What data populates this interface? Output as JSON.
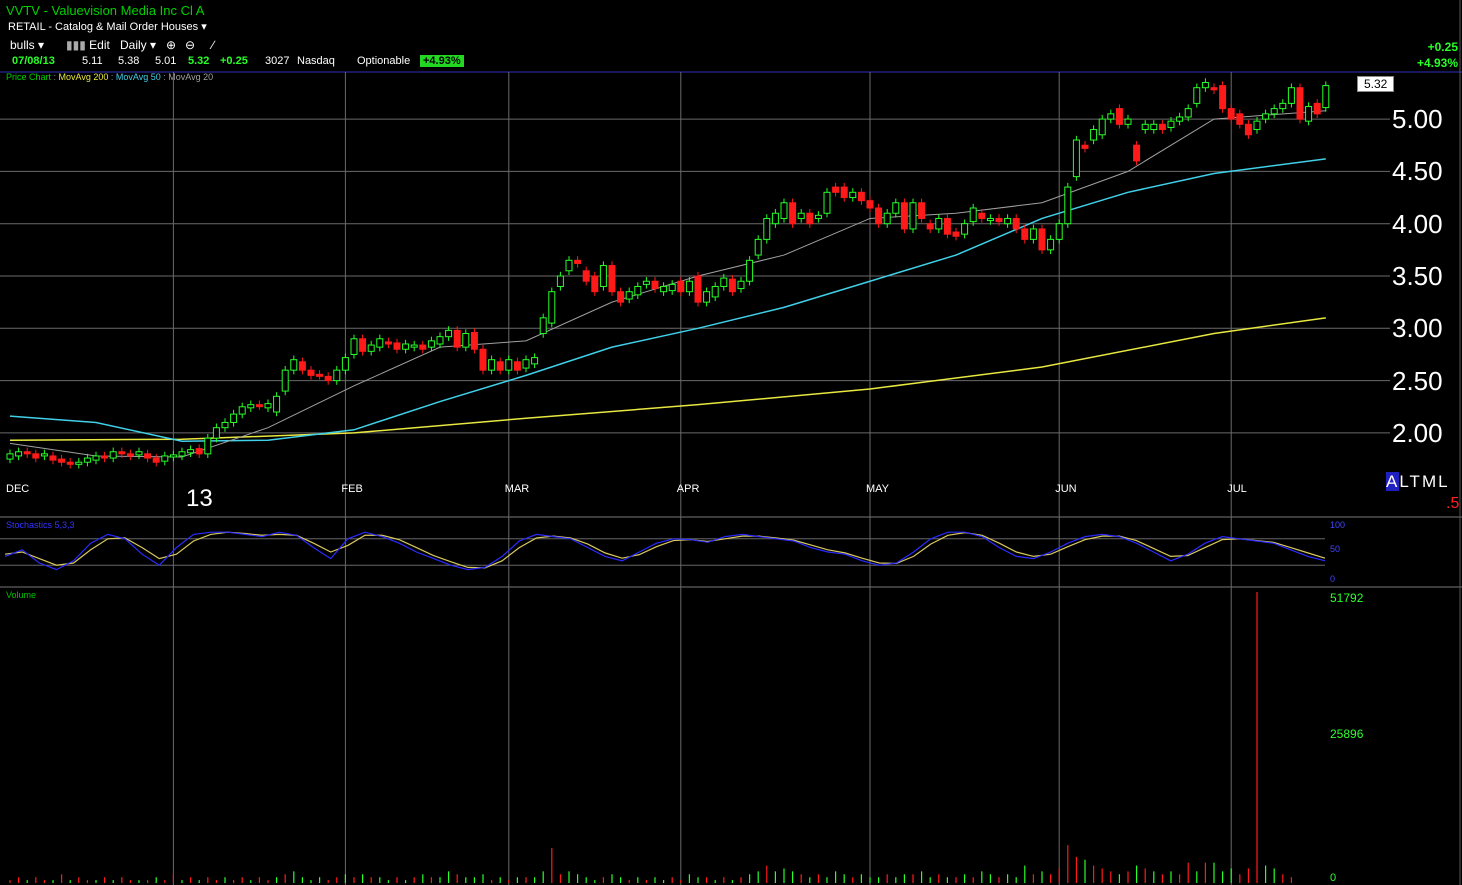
{
  "header": {
    "title": "VVTV - Valuevision Media Inc Cl A",
    "sector": "RETAIL - Catalog & Mail Order Houses",
    "watchlist": "bulls",
    "edit_label": "Edit",
    "period": "Daily"
  },
  "quote": {
    "date": "07/08/13",
    "open": "5.11",
    "high": "5.38",
    "low": "5.01",
    "close": "5.32",
    "change": "+0.25",
    "volume": "3027",
    "exchange": "Nasdaq",
    "optionable": "Optionable",
    "pct_change": "+4.93%",
    "right_change": "+0.25",
    "right_pct": "+4.93%"
  },
  "legend": {
    "price_chart": "Price Chart",
    "ma200": "MovAvg 200",
    "ma50": "MovAvg 50",
    "ma20": "MovAvg 20"
  },
  "colors": {
    "up": "#27ff27",
    "down": "#ff1a1a",
    "ma200": "#e8e840",
    "ma50": "#40d0e8",
    "ma20": "#a0a0a0",
    "stoch_k": "#2a2aff",
    "stoch_d": "#d8c860",
    "grid": "#6a6a6a"
  },
  "last_price": "5.32",
  "year_label": "13",
  "altml": [
    "A",
    "L",
    "T",
    "M",
    "L"
  ],
  "altml_red": ".5",
  "stochastics": {
    "title": "Stochastics 5,3,3",
    "levels": [
      "100",
      "50",
      "0"
    ]
  },
  "volume_pane": {
    "title": "Volume",
    "levels": [
      "51792",
      "25896",
      "0"
    ]
  },
  "chart_data": {
    "type": "candlestick",
    "yaxis": {
      "ticks": [
        2.0,
        2.5,
        3.0,
        3.5,
        4.0,
        4.5,
        5.0
      ],
      "tick_labels": [
        "2.00",
        "2.50",
        "3.00",
        "3.50",
        "4.00",
        "4.50",
        "5.00"
      ],
      "range": [
        1.55,
        5.45
      ]
    },
    "months": [
      {
        "label": "DEC",
        "day": 0
      },
      {
        "label": "FEB",
        "day": 39
      },
      {
        "label": "MAR",
        "day": 58
      },
      {
        "label": "APR",
        "day": 78
      },
      {
        "label": "MAY",
        "day": 100
      },
      {
        "label": "JUN",
        "day": 122
      },
      {
        "label": "JUL",
        "day": 142
      }
    ],
    "gridlines_days": [
      19,
      39,
      58,
      78,
      100,
      122,
      142
    ],
    "candles": [
      [
        1.75,
        1.8
      ],
      [
        1.78,
        1.82
      ],
      [
        1.82,
        1.8
      ],
      [
        1.8,
        1.76
      ],
      [
        1.78,
        1.8
      ],
      [
        1.78,
        1.74
      ],
      [
        1.75,
        1.72
      ],
      [
        1.72,
        1.7
      ],
      [
        1.7,
        1.72
      ],
      [
        1.72,
        1.76
      ],
      [
        1.74,
        1.78
      ],
      [
        1.78,
        1.76
      ],
      [
        1.76,
        1.82
      ],
      [
        1.82,
        1.8
      ],
      [
        1.8,
        1.78
      ],
      [
        1.79,
        1.82
      ],
      [
        1.8,
        1.76
      ],
      [
        1.76,
        1.72
      ],
      [
        1.73,
        1.78
      ],
      [
        1.77,
        1.79
      ],
      [
        1.78,
        1.82
      ],
      [
        1.81,
        1.84
      ],
      [
        1.85,
        1.8
      ],
      [
        1.8,
        1.95
      ],
      [
        1.95,
        2.05
      ],
      [
        2.05,
        2.1
      ],
      [
        2.1,
        2.18
      ],
      [
        2.18,
        2.25
      ],
      [
        2.24,
        2.27
      ],
      [
        2.27,
        2.26
      ],
      [
        2.24,
        2.28
      ],
      [
        2.2,
        2.35
      ],
      [
        2.4,
        2.6
      ],
      [
        2.6,
        2.7
      ],
      [
        2.68,
        2.6
      ],
      [
        2.6,
        2.55
      ],
      [
        2.56,
        2.55
      ],
      [
        2.54,
        2.5
      ],
      [
        2.5,
        2.6
      ],
      [
        2.6,
        2.72
      ],
      [
        2.75,
        2.9
      ],
      [
        2.9,
        2.78
      ],
      [
        2.78,
        2.84
      ],
      [
        2.82,
        2.9
      ],
      [
        2.87,
        2.85
      ],
      [
        2.86,
        2.8
      ],
      [
        2.8,
        2.85
      ],
      [
        2.82,
        2.84
      ],
      [
        2.84,
        2.8
      ],
      [
        2.82,
        2.88
      ],
      [
        2.85,
        2.92
      ],
      [
        2.92,
        2.98
      ],
      [
        2.98,
        2.82
      ],
      [
        2.82,
        2.95
      ],
      [
        2.96,
        2.8
      ],
      [
        2.8,
        2.6
      ],
      [
        2.6,
        2.7
      ],
      [
        2.68,
        2.6
      ],
      [
        2.6,
        2.7
      ],
      [
        2.68,
        2.6
      ],
      [
        2.62,
        2.7
      ],
      [
        2.66,
        2.72
      ],
      [
        2.95,
        3.1
      ],
      [
        3.05,
        3.35
      ],
      [
        3.4,
        3.5
      ],
      [
        3.55,
        3.65
      ],
      [
        3.65,
        3.62
      ],
      [
        3.55,
        3.45
      ],
      [
        3.5,
        3.35
      ],
      [
        3.4,
        3.6
      ],
      [
        3.6,
        3.35
      ],
      [
        3.35,
        3.25
      ],
      [
        3.28,
        3.35
      ],
      [
        3.32,
        3.4
      ],
      [
        3.42,
        3.45
      ],
      [
        3.45,
        3.38
      ],
      [
        3.35,
        3.4
      ],
      [
        3.36,
        3.42
      ],
      [
        3.45,
        3.35
      ],
      [
        3.35,
        3.45
      ],
      [
        3.5,
        3.25
      ],
      [
        3.25,
        3.35
      ],
      [
        3.3,
        3.4
      ],
      [
        3.4,
        3.48
      ],
      [
        3.47,
        3.35
      ],
      [
        3.38,
        3.45
      ],
      [
        3.45,
        3.65
      ],
      [
        3.7,
        3.85
      ],
      [
        3.85,
        4.05
      ],
      [
        4.0,
        4.1
      ],
      [
        4.05,
        4.2
      ],
      [
        4.2,
        4.0
      ],
      [
        4.05,
        4.1
      ],
      [
        4.1,
        4.0
      ],
      [
        4.05,
        4.08
      ],
      [
        4.1,
        4.3
      ],
      [
        4.35,
        4.3
      ],
      [
        4.35,
        4.25
      ],
      [
        4.25,
        4.3
      ],
      [
        4.3,
        4.22
      ],
      [
        4.22,
        4.15
      ],
      [
        4.15,
        4.0
      ],
      [
        4.0,
        4.1
      ],
      [
        4.1,
        4.2
      ],
      [
        4.2,
        3.95
      ],
      [
        3.95,
        4.2
      ],
      [
        4.2,
        4.05
      ],
      [
        4.0,
        3.95
      ],
      [
        3.95,
        4.05
      ],
      [
        4.05,
        3.9
      ],
      [
        3.92,
        3.88
      ],
      [
        3.9,
        4.0
      ],
      [
        4.02,
        4.15
      ],
      [
        4.1,
        4.05
      ],
      [
        4.03,
        4.05
      ],
      [
        4.05,
        4.02
      ],
      [
        4.0,
        4.05
      ],
      [
        4.05,
        3.95
      ],
      [
        3.95,
        3.85
      ],
      [
        3.85,
        3.95
      ],
      [
        3.95,
        3.75
      ],
      [
        3.75,
        3.85
      ],
      [
        3.85,
        4.0
      ],
      [
        4.0,
        4.35
      ],
      [
        4.45,
        4.8
      ],
      [
        4.75,
        4.72
      ],
      [
        4.8,
        4.9
      ],
      [
        4.85,
        5.0
      ],
      [
        5.0,
        5.05
      ],
      [
        5.1,
        4.95
      ],
      [
        4.95,
        5.0
      ],
      [
        4.75,
        4.6
      ],
      [
        4.9,
        4.95
      ],
      [
        4.9,
        4.95
      ],
      [
        4.95,
        4.9
      ],
      [
        4.92,
        4.98
      ],
      [
        4.98,
        5.02
      ],
      [
        5.02,
        5.1
      ],
      [
        5.15,
        5.3
      ],
      [
        5.3,
        5.35
      ],
      [
        5.3,
        5.28
      ],
      [
        5.32,
        5.1
      ],
      [
        5.1,
        5.0
      ],
      [
        5.05,
        4.95
      ],
      [
        4.95,
        4.85
      ],
      [
        4.9,
        4.98
      ],
      [
        5.0,
        5.05
      ],
      [
        5.05,
        5.1
      ],
      [
        5.1,
        5.15
      ],
      [
        5.15,
        5.3
      ],
      [
        5.3,
        5.0
      ],
      [
        4.98,
        5.12
      ],
      [
        5.15,
        5.05
      ],
      [
        5.11,
        5.32
      ]
    ],
    "ma200_points": [
      [
        0,
        1.93
      ],
      [
        20,
        1.94
      ],
      [
        40,
        2.0
      ],
      [
        60,
        2.14
      ],
      [
        80,
        2.27
      ],
      [
        100,
        2.42
      ],
      [
        120,
        2.63
      ],
      [
        140,
        2.95
      ],
      [
        153,
        3.1
      ]
    ],
    "ma50_points": [
      [
        0,
        2.16
      ],
      [
        10,
        2.1
      ],
      [
        20,
        1.92
      ],
      [
        30,
        1.93
      ],
      [
        40,
        2.03
      ],
      [
        50,
        2.3
      ],
      [
        60,
        2.55
      ],
      [
        70,
        2.82
      ],
      [
        80,
        3.0
      ],
      [
        90,
        3.2
      ],
      [
        100,
        3.45
      ],
      [
        110,
        3.7
      ],
      [
        120,
        4.05
      ],
      [
        130,
        4.3
      ],
      [
        140,
        4.48
      ],
      [
        153,
        4.62
      ]
    ],
    "ma20_points": [
      [
        0,
        1.9
      ],
      [
        10,
        1.78
      ],
      [
        20,
        1.77
      ],
      [
        30,
        2.05
      ],
      [
        40,
        2.45
      ],
      [
        50,
        2.82
      ],
      [
        60,
        2.88
      ],
      [
        70,
        3.25
      ],
      [
        80,
        3.5
      ],
      [
        90,
        3.7
      ],
      [
        100,
        4.05
      ],
      [
        110,
        4.1
      ],
      [
        120,
        4.2
      ],
      [
        130,
        4.5
      ],
      [
        140,
        5.0
      ],
      [
        153,
        5.08
      ]
    ],
    "stoch_k": [
      40,
      55,
      25,
      10,
      30,
      70,
      90,
      80,
      45,
      20,
      60,
      90,
      95,
      95,
      90,
      85,
      95,
      88,
      60,
      35,
      80,
      95,
      85,
      70,
      50,
      35,
      20,
      10,
      15,
      40,
      75,
      90,
      85,
      80,
      60,
      40,
      30,
      50,
      70,
      80,
      78,
      72,
      85,
      90,
      85,
      80,
      75,
      60,
      50,
      45,
      30,
      20,
      25,
      50,
      80,
      95,
      95,
      85,
      60,
      40,
      35,
      50,
      70,
      85,
      90,
      85,
      70,
      50,
      30,
      45,
      70,
      85,
      80,
      75,
      70,
      55,
      40,
      30
    ],
    "stoch_d": [
      45,
      50,
      35,
      20,
      25,
      55,
      80,
      82,
      60,
      35,
      45,
      75,
      90,
      95,
      92,
      88,
      90,
      88,
      70,
      50,
      65,
      88,
      88,
      78,
      60,
      42,
      28,
      15,
      14,
      30,
      60,
      82,
      86,
      82,
      68,
      48,
      36,
      44,
      62,
      76,
      78,
      74,
      80,
      86,
      86,
      82,
      77,
      66,
      55,
      48,
      36,
      25,
      24,
      40,
      68,
      88,
      94,
      88,
      70,
      50,
      40,
      45,
      62,
      78,
      86,
      86,
      76,
      58,
      40,
      42,
      60,
      78,
      80,
      76,
      72,
      60,
      48,
      36
    ],
    "volume": [
      [
        1,
        0
      ],
      [
        2,
        0
      ],
      [
        1,
        1
      ],
      [
        2,
        0
      ],
      [
        1,
        0
      ],
      [
        1,
        1
      ],
      [
        3,
        0
      ],
      [
        1,
        1
      ],
      [
        2,
        0
      ],
      [
        1,
        0
      ],
      [
        1,
        1
      ],
      [
        2,
        0
      ],
      [
        1,
        1
      ],
      [
        2,
        0
      ],
      [
        1,
        0
      ],
      [
        1,
        1
      ],
      [
        1,
        0
      ],
      [
        2,
        1
      ],
      [
        1,
        0
      ],
      [
        3,
        0
      ],
      [
        1,
        1
      ],
      [
        2,
        0
      ],
      [
        1,
        1
      ],
      [
        2,
        0
      ],
      [
        1,
        0
      ],
      [
        2,
        1
      ],
      [
        1,
        0
      ],
      [
        2,
        0
      ],
      [
        1,
        1
      ],
      [
        2,
        0
      ],
      [
        1,
        0
      ],
      [
        2,
        1
      ],
      [
        3,
        0
      ],
      [
        4,
        1
      ],
      [
        2,
        1
      ],
      [
        1,
        1
      ],
      [
        2,
        1
      ],
      [
        1,
        0
      ],
      [
        2,
        0
      ],
      [
        3,
        1
      ],
      [
        2,
        0
      ],
      [
        3,
        1
      ],
      [
        2,
        0
      ],
      [
        2,
        1
      ],
      [
        1,
        1
      ],
      [
        2,
        0
      ],
      [
        1,
        1
      ],
      [
        2,
        0
      ],
      [
        3,
        1
      ],
      [
        2,
        0
      ],
      [
        2,
        1
      ],
      [
        4,
        1
      ],
      [
        3,
        0
      ],
      [
        2,
        1
      ],
      [
        2,
        1
      ],
      [
        3,
        1
      ],
      [
        1,
        0
      ],
      [
        2,
        1
      ],
      [
        1,
        0
      ],
      [
        2,
        1
      ],
      [
        2,
        0
      ],
      [
        2,
        1
      ],
      [
        4,
        1
      ],
      [
        12,
        0
      ],
      [
        3,
        0
      ],
      [
        4,
        1
      ],
      [
        3,
        1
      ],
      [
        2,
        1
      ],
      [
        1,
        1
      ],
      [
        2,
        0
      ],
      [
        3,
        1
      ],
      [
        2,
        1
      ],
      [
        1,
        0
      ],
      [
        2,
        1
      ],
      [
        1,
        0
      ],
      [
        2,
        1
      ],
      [
        1,
        1
      ],
      [
        2,
        0
      ],
      [
        1,
        0
      ],
      [
        3,
        1
      ],
      [
        2,
        1
      ],
      [
        2,
        0
      ],
      [
        1,
        1
      ],
      [
        2,
        0
      ],
      [
        1,
        1
      ],
      [
        2,
        0
      ],
      [
        3,
        1
      ],
      [
        4,
        1
      ],
      [
        6,
        0
      ],
      [
        4,
        1
      ],
      [
        5,
        1
      ],
      [
        4,
        1
      ],
      [
        3,
        0
      ],
      [
        2,
        1
      ],
      [
        3,
        0
      ],
      [
        2,
        1
      ],
      [
        4,
        1
      ],
      [
        3,
        1
      ],
      [
        2,
        0
      ],
      [
        3,
        1
      ],
      [
        2,
        1
      ],
      [
        2,
        1
      ],
      [
        3,
        0
      ],
      [
        2,
        1
      ],
      [
        3,
        1
      ],
      [
        3,
        0
      ],
      [
        4,
        1
      ],
      [
        2,
        1
      ],
      [
        3,
        0
      ],
      [
        2,
        1
      ],
      [
        2,
        0
      ],
      [
        3,
        1
      ],
      [
        2,
        0
      ],
      [
        4,
        1
      ],
      [
        3,
        1
      ],
      [
        2,
        0
      ],
      [
        3,
        1
      ],
      [
        2,
        1
      ],
      [
        6,
        1
      ],
      [
        3,
        0
      ],
      [
        4,
        1
      ],
      [
        3,
        0
      ],
      [
        5,
        0
      ],
      [
        13,
        0
      ],
      [
        9,
        0
      ],
      [
        8,
        1
      ],
      [
        6,
        0
      ],
      [
        5,
        0
      ],
      [
        4,
        0
      ],
      [
        3,
        1
      ],
      [
        4,
        0
      ],
      [
        6,
        1
      ],
      [
        5,
        0
      ],
      [
        4,
        1
      ],
      [
        3,
        0
      ],
      [
        4,
        1
      ],
      [
        3,
        0
      ],
      [
        7,
        0
      ],
      [
        4,
        1
      ],
      [
        7,
        0
      ],
      [
        7,
        1
      ],
      [
        4,
        1
      ],
      [
        5,
        1
      ],
      [
        3,
        0
      ],
      [
        5,
        0
      ],
      [
        100,
        0
      ],
      [
        6,
        1
      ],
      [
        5,
        1
      ],
      [
        3,
        0
      ],
      [
        2,
        0
      ]
    ]
  }
}
